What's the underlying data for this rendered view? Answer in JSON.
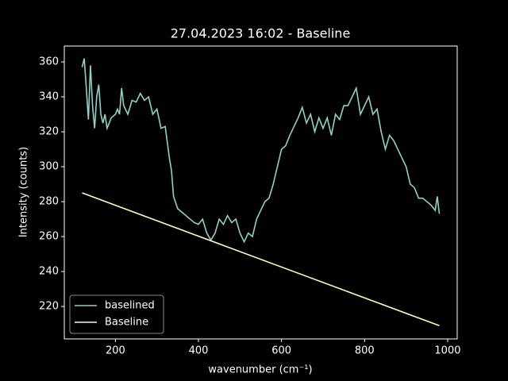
{
  "chart_data": {
    "type": "line",
    "title": "27.04.2023 16:02 - Baseline",
    "xlabel": "wavenumber (cm⁻¹)",
    "ylabel": "Intensity (counts)",
    "xlim": [
      77,
      1023
    ],
    "ylim": [
      201.4,
      369.1
    ],
    "xticks": [
      200,
      400,
      600,
      800,
      1000
    ],
    "yticks": [
      220,
      240,
      260,
      280,
      300,
      320,
      340,
      360
    ],
    "legend": "lower left",
    "series": [
      {
        "name": "baselined",
        "color": "#8dd3c7",
        "x": [
          120,
          125,
          130,
          135,
          140,
          145,
          150,
          155,
          160,
          165,
          170,
          175,
          180,
          190,
          200,
          205,
          210,
          215,
          220,
          230,
          240,
          250,
          260,
          270,
          280,
          290,
          300,
          310,
          320,
          330,
          335,
          340,
          350,
          360,
          370,
          380,
          390,
          400,
          410,
          420,
          430,
          440,
          450,
          460,
          470,
          480,
          490,
          500,
          510,
          520,
          530,
          540,
          550,
          560,
          570,
          580,
          590,
          600,
          610,
          620,
          630,
          640,
          650,
          660,
          670,
          680,
          690,
          700,
          710,
          720,
          730,
          740,
          750,
          760,
          770,
          780,
          790,
          800,
          810,
          820,
          830,
          840,
          850,
          860,
          870,
          880,
          890,
          900,
          910,
          920,
          930,
          940,
          950,
          960,
          970,
          975,
          980
        ],
        "values": [
          357,
          362,
          345,
          327,
          358,
          335,
          322,
          340,
          347,
          330,
          325,
          330,
          322,
          328,
          330,
          333,
          330,
          345,
          335,
          330,
          338,
          337,
          342,
          338,
          340,
          330,
          333,
          322,
          323,
          305,
          298,
          283,
          276,
          274,
          272,
          270,
          268,
          267,
          270,
          262,
          258,
          262,
          270,
          267,
          272,
          268,
          270,
          262,
          257,
          262,
          260,
          270,
          275,
          280,
          282,
          290,
          300,
          310,
          312,
          318,
          323,
          328,
          334,
          325,
          330,
          320,
          328,
          322,
          328,
          318,
          330,
          327,
          335,
          335,
          340,
          345,
          330,
          335,
          340,
          330,
          333,
          320,
          310,
          318,
          315,
          310,
          305,
          300,
          290,
          288,
          282,
          282,
          280,
          278,
          275,
          283,
          273
        ]
      },
      {
        "name": "Baseline",
        "color": "#ffffb3",
        "x": [
          120,
          980
        ],
        "values": [
          285,
          209
        ]
      }
    ]
  }
}
